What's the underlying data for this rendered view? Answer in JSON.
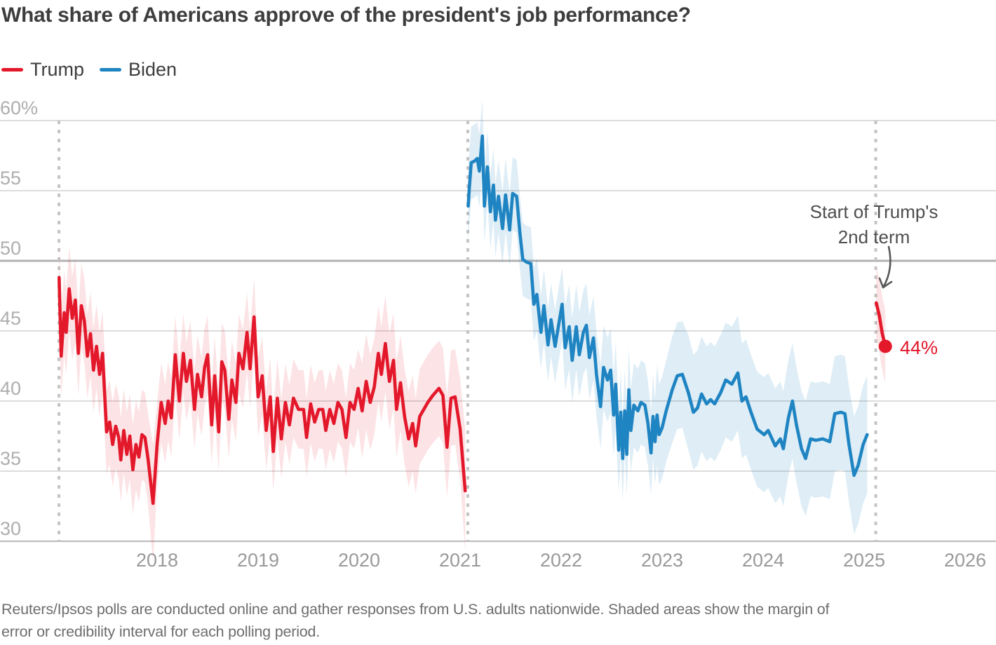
{
  "title": "What share of Americans approve of the president's job performance?",
  "legend": [
    {
      "label": "Trump",
      "color": "#e3182b"
    },
    {
      "label": "Biden",
      "color": "#1f84c2"
    }
  ],
  "annotation": {
    "line1": "Start of Trump's",
    "line2": "2nd term"
  },
  "end_label": "44%",
  "footnote": {
    "line1": "Reuters/Ipsos polls are conducted online and gather responses from U.S. adults nationwide. Shaded areas show the margin of",
    "line2": "error or credibility interval for each polling period."
  },
  "chart_data": {
    "type": "line",
    "title": "What share of Americans approve of the president's job performance?",
    "x_axis": {
      "label_years": [
        2018,
        2019,
        2020,
        2021,
        2022,
        2023,
        2024,
        2025,
        2026
      ]
    },
    "y_axis": {
      "ticks": [
        30,
        35,
        40,
        45,
        50,
        55,
        60
      ],
      "top_suffix": "%",
      "range": [
        30,
        60
      ]
    },
    "reference_line": 50,
    "grid": true,
    "term_start_markers": [
      2017.028,
      2021.076,
      2025.115
    ],
    "end_point": {
      "series": "Trump 2nd term",
      "value": 44,
      "label": "44%"
    },
    "series": [
      {
        "name": "Trump 1st term",
        "color": "#e3182b",
        "band_opacity": 0.12,
        "points": [
          [
            2017.03,
            48.8,
            3.0
          ],
          [
            2017.05,
            43.2,
            3.0
          ],
          [
            2017.08,
            46.3,
            3.0
          ],
          [
            2017.1,
            44.9,
            3.0
          ],
          [
            2017.13,
            48.0,
            3.0
          ],
          [
            2017.16,
            45.9,
            3.0
          ],
          [
            2017.19,
            47.2,
            3.0
          ],
          [
            2017.22,
            43.4,
            3.0
          ],
          [
            2017.25,
            46.8,
            3.0
          ],
          [
            2017.28,
            45.7,
            3.0
          ],
          [
            2017.31,
            43.2,
            3.0
          ],
          [
            2017.34,
            44.8,
            3.0
          ],
          [
            2017.37,
            42.2,
            3.0
          ],
          [
            2017.4,
            43.9,
            3.0
          ],
          [
            2017.43,
            41.9,
            3.0
          ],
          [
            2017.46,
            43.4,
            3.0
          ],
          [
            2017.5,
            37.8,
            3.0
          ],
          [
            2017.53,
            38.5,
            3.0
          ],
          [
            2017.56,
            36.9,
            3.0
          ],
          [
            2017.59,
            38.2,
            3.0
          ],
          [
            2017.62,
            37.4,
            3.0
          ],
          [
            2017.64,
            35.8,
            3.0
          ],
          [
            2017.67,
            37.9,
            3.0
          ],
          [
            2017.7,
            36.2,
            3.0
          ],
          [
            2017.73,
            37.5,
            3.0
          ],
          [
            2017.76,
            35.1,
            3.2
          ],
          [
            2017.79,
            36.9,
            3.2
          ],
          [
            2017.82,
            36.0,
            3.2
          ],
          [
            2017.85,
            37.6,
            3.2
          ],
          [
            2017.88,
            37.4,
            3.2
          ],
          [
            2017.91,
            35.9,
            3.2
          ],
          [
            2017.96,
            32.7,
            4.2
          ],
          [
            2018.0,
            36.9,
            3.0
          ],
          [
            2018.04,
            39.9,
            2.8
          ],
          [
            2018.08,
            38.4,
            2.8
          ],
          [
            2018.11,
            40.0,
            2.8
          ],
          [
            2018.14,
            38.8,
            2.8
          ],
          [
            2018.18,
            43.3,
            2.8
          ],
          [
            2018.22,
            40.0,
            2.8
          ],
          [
            2018.26,
            43.4,
            2.8
          ],
          [
            2018.29,
            41.4,
            2.8
          ],
          [
            2018.33,
            42.9,
            2.8
          ],
          [
            2018.37,
            39.4,
            2.8
          ],
          [
            2018.4,
            41.9,
            2.8
          ],
          [
            2018.44,
            40.3,
            2.8
          ],
          [
            2018.47,
            42.4,
            2.8
          ],
          [
            2018.5,
            43.3,
            2.8
          ],
          [
            2018.54,
            38.3,
            2.8
          ],
          [
            2018.57,
            41.8,
            2.8
          ],
          [
            2018.61,
            37.8,
            2.8
          ],
          [
            2018.64,
            42.8,
            2.8
          ],
          [
            2018.67,
            42.2,
            2.8
          ],
          [
            2018.71,
            38.7,
            2.8
          ],
          [
            2018.74,
            41.5,
            2.8
          ],
          [
            2018.78,
            39.9,
            2.8
          ],
          [
            2018.81,
            43.4,
            2.8
          ],
          [
            2018.85,
            42.3,
            2.8
          ],
          [
            2018.89,
            44.9,
            2.8
          ],
          [
            2018.92,
            42.3,
            2.8
          ],
          [
            2018.96,
            46.0,
            2.8
          ],
          [
            2019.0,
            40.3,
            2.8
          ],
          [
            2019.04,
            41.8,
            2.8
          ],
          [
            2019.08,
            37.9,
            2.8
          ],
          [
            2019.12,
            40.3,
            2.8
          ],
          [
            2019.15,
            36.4,
            2.8
          ],
          [
            2019.19,
            40.2,
            2.8
          ],
          [
            2019.23,
            37.3,
            2.8
          ],
          [
            2019.27,
            39.9,
            2.8
          ],
          [
            2019.31,
            38.3,
            2.8
          ],
          [
            2019.35,
            40.2,
            2.8
          ],
          [
            2019.4,
            39.4,
            2.8
          ],
          [
            2019.45,
            39.4,
            2.8
          ],
          [
            2019.48,
            37.4,
            2.8
          ],
          [
            2019.52,
            39.8,
            2.8
          ],
          [
            2019.56,
            38.5,
            2.8
          ],
          [
            2019.6,
            39.4,
            2.8
          ],
          [
            2019.64,
            39.4,
            2.8
          ],
          [
            2019.67,
            37.9,
            2.8
          ],
          [
            2019.71,
            39.4,
            2.8
          ],
          [
            2019.75,
            38.4,
            2.8
          ],
          [
            2019.79,
            39.9,
            2.8
          ],
          [
            2019.83,
            39.4,
            2.8
          ],
          [
            2019.87,
            37.4,
            2.8
          ],
          [
            2019.91,
            39.9,
            2.8
          ],
          [
            2019.95,
            39.4,
            2.8
          ],
          [
            2019.99,
            40.9,
            2.8
          ],
          [
            2020.03,
            39.3,
            3.4
          ],
          [
            2020.07,
            41.4,
            3.4
          ],
          [
            2020.11,
            39.9,
            3.4
          ],
          [
            2020.15,
            41.0,
            3.4
          ],
          [
            2020.19,
            43.4,
            3.4
          ],
          [
            2020.22,
            41.9,
            3.4
          ],
          [
            2020.26,
            44.1,
            3.4
          ],
          [
            2020.3,
            41.4,
            3.4
          ],
          [
            2020.34,
            42.9,
            3.4
          ],
          [
            2020.37,
            39.4,
            3.4
          ],
          [
            2020.41,
            41.3,
            3.4
          ],
          [
            2020.45,
            38.9,
            3.4
          ],
          [
            2020.49,
            37.3,
            3.4
          ],
          [
            2020.53,
            38.4,
            3.4
          ],
          [
            2020.56,
            36.8,
            3.4
          ],
          [
            2020.6,
            38.9,
            3.4
          ],
          [
            2020.64,
            39.4,
            3.4
          ],
          [
            2020.68,
            39.9,
            3.4
          ],
          [
            2020.73,
            40.4,
            3.4
          ],
          [
            2020.79,
            40.9,
            3.4
          ],
          [
            2020.83,
            40.4,
            3.4
          ],
          [
            2020.87,
            36.7,
            3.6
          ],
          [
            2020.91,
            40.2,
            3.4
          ],
          [
            2020.95,
            40.3,
            3.4
          ],
          [
            2021.0,
            38.0,
            3.6
          ],
          [
            2021.05,
            33.6,
            4.4
          ]
        ]
      },
      {
        "name": "Biden",
        "color": "#1f84c2",
        "band_opacity": 0.15,
        "points": [
          [
            2021.08,
            53.9,
            2.6
          ],
          [
            2021.09,
            55.1,
            2.6
          ],
          [
            2021.11,
            57.0,
            2.6
          ],
          [
            2021.14,
            57.1,
            2.6
          ],
          [
            2021.17,
            57.3,
            2.6
          ],
          [
            2021.19,
            56.4,
            2.6
          ],
          [
            2021.22,
            58.9,
            2.6
          ],
          [
            2021.24,
            53.9,
            2.6
          ],
          [
            2021.27,
            56.7,
            2.6
          ],
          [
            2021.3,
            53.5,
            2.6
          ],
          [
            2021.33,
            55.4,
            2.6
          ],
          [
            2021.35,
            52.9,
            2.6
          ],
          [
            2021.38,
            54.6,
            2.6
          ],
          [
            2021.42,
            52.3,
            2.6
          ],
          [
            2021.45,
            54.7,
            2.6
          ],
          [
            2021.49,
            52.2,
            2.6
          ],
          [
            2021.52,
            54.8,
            2.6
          ],
          [
            2021.56,
            54.6,
            2.6
          ],
          [
            2021.59,
            52.1,
            2.6
          ],
          [
            2021.62,
            50.1,
            2.6
          ],
          [
            2021.66,
            49.9,
            2.6
          ],
          [
            2021.7,
            49.8,
            2.6
          ],
          [
            2021.73,
            46.9,
            2.6
          ],
          [
            2021.76,
            47.6,
            2.6
          ],
          [
            2021.8,
            44.9,
            2.6
          ],
          [
            2021.83,
            46.8,
            2.6
          ],
          [
            2021.87,
            44.0,
            2.6
          ],
          [
            2021.9,
            45.8,
            2.6
          ],
          [
            2021.94,
            43.9,
            2.6
          ],
          [
            2021.97,
            45.2,
            2.6
          ],
          [
            2022.01,
            46.9,
            2.6
          ],
          [
            2022.04,
            43.8,
            3.0
          ],
          [
            2022.08,
            45.3,
            3.0
          ],
          [
            2022.11,
            42.9,
            3.0
          ],
          [
            2022.15,
            45.3,
            3.0
          ],
          [
            2022.18,
            43.3,
            3.0
          ],
          [
            2022.22,
            44.9,
            3.0
          ],
          [
            2022.25,
            45.4,
            3.0
          ],
          [
            2022.28,
            43.1,
            3.0
          ],
          [
            2022.32,
            44.5,
            3.0
          ],
          [
            2022.35,
            41.9,
            3.0
          ],
          [
            2022.39,
            39.6,
            3.0
          ],
          [
            2022.42,
            42.4,
            3.0
          ],
          [
            2022.46,
            41.5,
            3.0
          ],
          [
            2022.49,
            42.2,
            3.0
          ],
          [
            2022.52,
            39.0,
            3.0
          ],
          [
            2022.54,
            41.2,
            3.0
          ],
          [
            2022.57,
            36.5,
            3.0
          ],
          [
            2022.59,
            39.2,
            3.0
          ],
          [
            2022.61,
            35.9,
            3.0
          ],
          [
            2022.63,
            39.3,
            3.0
          ],
          [
            2022.65,
            36.2,
            3.0
          ],
          [
            2022.67,
            40.8,
            3.0
          ],
          [
            2022.69,
            37.9,
            3.0
          ],
          [
            2022.72,
            39.7,
            3.0
          ],
          [
            2022.76,
            39.3,
            3.0
          ],
          [
            2022.79,
            39.9,
            3.0
          ],
          [
            2022.83,
            39.7,
            3.0
          ],
          [
            2022.86,
            38.4,
            3.0
          ],
          [
            2022.89,
            36.3,
            3.0
          ],
          [
            2022.91,
            38.9,
            3.0
          ],
          [
            2022.93,
            37.1,
            3.0
          ],
          [
            2022.95,
            39.0,
            3.6
          ],
          [
            2022.97,
            37.6,
            3.6
          ],
          [
            2023.0,
            38.1,
            3.6
          ],
          [
            2023.04,
            39.3,
            3.6
          ],
          [
            2023.1,
            40.8,
            3.8
          ],
          [
            2023.15,
            41.8,
            3.8
          ],
          [
            2023.2,
            41.9,
            3.8
          ],
          [
            2023.26,
            40.6,
            4.1
          ],
          [
            2023.31,
            39.2,
            4.1
          ],
          [
            2023.35,
            39.5,
            4.1
          ],
          [
            2023.39,
            40.5,
            4.1
          ],
          [
            2023.44,
            39.8,
            4.1
          ],
          [
            2023.48,
            40.1,
            4.1
          ],
          [
            2023.52,
            39.8,
            4.1
          ],
          [
            2023.58,
            40.6,
            4.1
          ],
          [
            2023.63,
            41.5,
            4.1
          ],
          [
            2023.69,
            41.2,
            4.1
          ],
          [
            2023.75,
            42.0,
            4.1
          ],
          [
            2023.79,
            40.0,
            4.1
          ],
          [
            2023.83,
            40.3,
            4.1
          ],
          [
            2023.88,
            39.2,
            4.1
          ],
          [
            2023.94,
            38.0,
            4.1
          ],
          [
            2024.01,
            37.6,
            4.1
          ],
          [
            2024.05,
            37.9,
            4.1
          ],
          [
            2024.12,
            36.8,
            4.1
          ],
          [
            2024.17,
            37.3,
            4.1
          ],
          [
            2024.2,
            36.6,
            4.1
          ],
          [
            2024.25,
            38.8,
            4.1
          ],
          [
            2024.29,
            40.0,
            4.1
          ],
          [
            2024.33,
            38.3,
            4.1
          ],
          [
            2024.38,
            36.6,
            4.1
          ],
          [
            2024.42,
            35.9,
            4.1
          ],
          [
            2024.47,
            37.3,
            4.1
          ],
          [
            2024.52,
            37.2,
            4.1
          ],
          [
            2024.59,
            37.3,
            4.1
          ],
          [
            2024.66,
            37.1,
            4.1
          ],
          [
            2024.71,
            39.1,
            4.1
          ],
          [
            2024.77,
            39.2,
            4.1
          ],
          [
            2024.81,
            39.1,
            4.1
          ],
          [
            2024.85,
            36.9,
            4.1
          ],
          [
            2024.9,
            34.7,
            4.2
          ],
          [
            2024.94,
            35.4,
            4.2
          ],
          [
            2024.99,
            36.9,
            4.2
          ],
          [
            2025.03,
            37.6,
            4.2
          ]
        ]
      },
      {
        "name": "Trump 2nd term",
        "color": "#e3182b",
        "band_opacity": 0.12,
        "end_dot": true,
        "points": [
          [
            2025.12,
            47.0,
            2.6
          ],
          [
            2025.15,
            46.1,
            2.6
          ],
          [
            2025.18,
            44.8,
            2.6
          ],
          [
            2025.21,
            43.9,
            2.6
          ]
        ]
      }
    ]
  }
}
